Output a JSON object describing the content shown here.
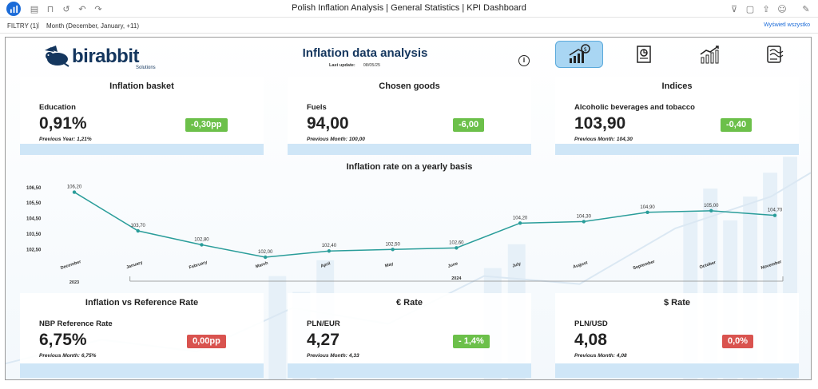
{
  "app": {
    "title": "Polish Inflation Analysis | General Statistics | KPI Dashboard",
    "logo_icon": "bar-chart-icon",
    "accent": "#1b6bd8"
  },
  "filters": {
    "label": "FILTRY (1)",
    "separator": "|",
    "value": "Month  (December, January, +11)",
    "show_all": "Wyświetl wszystko"
  },
  "header": {
    "brand": "birabbit",
    "brand_sub": "Solutions",
    "title": "Inflation data analysis",
    "last_update_label": "Last update:",
    "last_update_value": "08/05/25",
    "info_icon": "info-icon"
  },
  "nav": {
    "items": [
      {
        "icon": "money-growth-icon",
        "active": true
      },
      {
        "icon": "document-stats-icon",
        "active": false
      },
      {
        "icon": "line-growth-icon",
        "active": false
      },
      {
        "icon": "report-icon",
        "active": false
      }
    ]
  },
  "cards": [
    {
      "title": "Inflation basket",
      "subtitle": "Education",
      "value": "0,91%",
      "badge": "-0,30pp",
      "badge_color": "#6cc04a",
      "prev_label": "Previous Year:",
      "prev_value": "1,21%"
    },
    {
      "title": "Chosen goods",
      "subtitle": "Fuels",
      "value": "94,00",
      "badge": "-6,00",
      "badge_color": "#6cc04a",
      "prev_label": "Previous Month:",
      "prev_value": "100,00"
    },
    {
      "title": "Indices",
      "subtitle": "Alcoholic beverages and tobacco",
      "value": "103,90",
      "badge": "-0,40",
      "badge_color": "#6cc04a",
      "prev_label": "Previous Month:",
      "prev_value": "104,30"
    },
    {
      "title": "Inflation vs Reference Rate",
      "subtitle": "NBP Reference Rate",
      "value": "6,75%",
      "badge": "0,00pp",
      "badge_color": "#d9534f",
      "prev_label": "Previous Month:",
      "prev_value": "6,75%"
    },
    {
      "title": "€ Rate",
      "subtitle": "PLN/EUR",
      "value": "4,27",
      "badge": "- 1,4%",
      "badge_color": "#6cc04a",
      "prev_label": "Previous Month:",
      "prev_value": "4,33"
    },
    {
      "title": "$ Rate",
      "subtitle": "PLN/USD",
      "value": "4,08",
      "badge": "0,0%",
      "badge_color": "#d9534f",
      "prev_label": "Previous Month:",
      "prev_value": "4,08"
    }
  ],
  "chart_data": {
    "type": "line",
    "title": "Inflation rate on a yearly basis",
    "categories": [
      "December",
      "January",
      "February",
      "March",
      "April",
      "May",
      "June",
      "July",
      "August",
      "September",
      "October",
      "November"
    ],
    "series": [
      {
        "values": [
          106.2,
          103.7,
          102.8,
          102.0,
          102.4,
          102.5,
          102.6,
          104.2,
          104.3,
          104.9,
          105.0,
          104.7
        ]
      }
    ],
    "data_labels": [
      "106,20",
      "103,70",
      "102,80",
      "102,00",
      "102,40",
      "102,50",
      "102,60",
      "104,20",
      "104,30",
      "104,90",
      "105,00",
      "104,70"
    ],
    "y_ticks": [
      "106,50",
      "105,50",
      "104,50",
      "103,50",
      "102,50"
    ],
    "y_tick_values": [
      106.5,
      105.5,
      104.5,
      103.5,
      102.5
    ],
    "ylim": [
      102.0,
      106.9
    ],
    "year_labels": [
      "2023",
      "2024"
    ],
    "line_color": "#2a9d9a",
    "grid": false
  }
}
